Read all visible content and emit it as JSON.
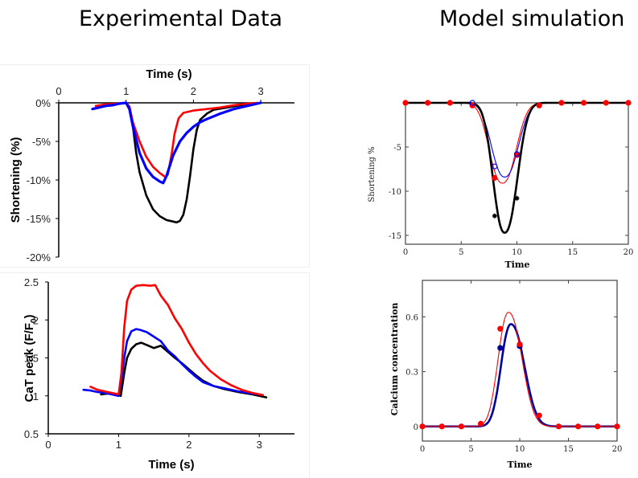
{
  "headings": {
    "left": "Experimental Data",
    "right": "Model simulation"
  },
  "chart_data": [
    {
      "id": "exp-shortening",
      "type": "line",
      "title": "",
      "xlabel": "Time (s)",
      "ylabel": "Shortening (%)",
      "xlim": [
        0,
        3.5
      ],
      "ylim": [
        -20,
        0
      ],
      "xticks": [
        "0",
        "1",
        "2",
        "3"
      ],
      "xtick_values": [
        0,
        1,
        2,
        3
      ],
      "yticks": [
        "0%",
        "-5%",
        "-10%",
        "-15%",
        "-20%"
      ],
      "ytick_values": [
        0,
        -5,
        -10,
        -15,
        -20
      ],
      "x_axis_position": "top",
      "grid": false,
      "legend": "none",
      "series": [
        {
          "name": "black",
          "color": "#000000",
          "x": [
            1.0,
            1.05,
            1.1,
            1.15,
            1.2,
            1.3,
            1.4,
            1.5,
            1.6,
            1.7,
            1.75,
            1.8,
            1.85,
            1.9,
            1.95,
            2.0,
            2.05,
            2.1,
            2.2,
            2.3,
            2.5,
            2.7,
            2.9,
            3.0
          ],
          "y": [
            0,
            -0.5,
            -3,
            -6.5,
            -9,
            -12,
            -13.8,
            -14.7,
            -15.2,
            -15.4,
            -15.5,
            -15.3,
            -14.5,
            -12.5,
            -9.5,
            -6,
            -3.5,
            -2.2,
            -1.4,
            -0.9,
            -0.6,
            -0.3,
            -0.1,
            0
          ]
        },
        {
          "name": "red",
          "color": "#ff0000",
          "x": [
            0.55,
            0.7,
            0.85,
            1.0,
            1.05,
            1.1,
            1.2,
            1.3,
            1.4,
            1.5,
            1.58,
            1.62,
            1.68,
            1.72,
            1.78,
            1.85,
            2.0,
            2.2,
            2.4,
            2.6,
            2.8,
            2.95
          ],
          "y": [
            -0.4,
            -0.2,
            -0.1,
            0,
            -0.5,
            -2.5,
            -5,
            -7,
            -8.3,
            -9.1,
            -9.6,
            -9.3,
            -6.5,
            -4,
            -2,
            -1.3,
            -1.0,
            -0.8,
            -0.6,
            -0.3,
            -0.1,
            0
          ]
        },
        {
          "name": "blue",
          "color": "#0000ff",
          "x": [
            0.5,
            0.6,
            0.7,
            0.8,
            0.9,
            1.0,
            1.05,
            1.1,
            1.2,
            1.3,
            1.4,
            1.5,
            1.55,
            1.6,
            1.7,
            1.8,
            1.9,
            2.0,
            2.1,
            2.2,
            2.4,
            2.6,
            2.8,
            3.0
          ],
          "y": [
            -0.8,
            -0.6,
            -0.4,
            -0.3,
            -0.1,
            0,
            -0.8,
            -3,
            -6.5,
            -8.5,
            -9.6,
            -10.2,
            -10.4,
            -9.5,
            -6.8,
            -5.0,
            -3.9,
            -3.1,
            -2.5,
            -2.1,
            -1.4,
            -0.8,
            -0.4,
            0
          ]
        }
      ]
    },
    {
      "id": "exp-calcium",
      "type": "line",
      "title": "",
      "xlabel": "Time (s)",
      "ylabel": "CaT peak (F/F0)",
      "ylabel_main": "CaT peak (F/F",
      "ylabel_sub": "0",
      "ylabel_end": ")",
      "xlim": [
        0,
        3.5
      ],
      "ylim": [
        0.5,
        2.5
      ],
      "xticks": [
        "0",
        "1",
        "2",
        "3"
      ],
      "xtick_values": [
        0,
        1,
        2,
        3
      ],
      "yticks": [
        "2.5",
        "2",
        "1.5",
        "1",
        "0.5"
      ],
      "ytick_values": [
        2.5,
        2,
        1.5,
        1,
        0.5
      ],
      "grid": false,
      "legend": "none",
      "series": [
        {
          "name": "black",
          "color": "#000000",
          "x": [
            0.75,
            0.85,
            0.95,
            1.03,
            1.08,
            1.12,
            1.18,
            1.25,
            1.32,
            1.4,
            1.5,
            1.6,
            1.7,
            1.8,
            1.9,
            2.0,
            2.1,
            2.2,
            2.35,
            2.5,
            2.7,
            2.9,
            3.1
          ],
          "y": [
            1.02,
            1.03,
            1.02,
            1.0,
            1.3,
            1.5,
            1.62,
            1.68,
            1.7,
            1.67,
            1.63,
            1.66,
            1.58,
            1.5,
            1.43,
            1.35,
            1.27,
            1.2,
            1.13,
            1.09,
            1.05,
            1.02,
            0.98
          ]
        },
        {
          "name": "red",
          "color": "#ff0000",
          "x": [
            0.6,
            0.7,
            0.8,
            0.9,
            1.0,
            1.04,
            1.08,
            1.12,
            1.18,
            1.25,
            1.35,
            1.45,
            1.52,
            1.6,
            1.7,
            1.8,
            1.9,
            2.0,
            2.1,
            2.2,
            2.3,
            2.45,
            2.6,
            2.75,
            2.9,
            3.05
          ],
          "y": [
            1.12,
            1.08,
            1.06,
            1.04,
            1.02,
            1.3,
            1.9,
            2.25,
            2.4,
            2.45,
            2.46,
            2.45,
            2.46,
            2.32,
            2.2,
            2.02,
            1.88,
            1.7,
            1.55,
            1.43,
            1.33,
            1.22,
            1.14,
            1.08,
            1.04,
            1.01
          ]
        },
        {
          "name": "blue",
          "color": "#0000ff",
          "x": [
            0.5,
            0.6,
            0.7,
            0.8,
            0.9,
            1.0,
            1.04,
            1.08,
            1.12,
            1.18,
            1.25,
            1.3,
            1.4,
            1.5,
            1.6,
            1.7,
            1.8,
            1.9,
            2.0,
            2.1,
            2.2,
            2.35,
            2.5,
            2.7,
            2.9,
            3.05
          ],
          "y": [
            1.08,
            1.07,
            1.05,
            1.04,
            1.02,
            1.0,
            1.2,
            1.5,
            1.72,
            1.85,
            1.88,
            1.87,
            1.84,
            1.78,
            1.72,
            1.6,
            1.52,
            1.42,
            1.33,
            1.25,
            1.18,
            1.13,
            1.1,
            1.06,
            1.03,
            1.01
          ]
        }
      ]
    },
    {
      "id": "model-shortening",
      "type": "line",
      "title": "",
      "xlabel": "Time",
      "ylabel": "Shortening %",
      "xlim": [
        0,
        20
      ],
      "ylim": [
        -16,
        0
      ],
      "xticks": [
        "0",
        "5",
        "10",
        "15",
        "20"
      ],
      "xtick_values": [
        0,
        5,
        10,
        15,
        20
      ],
      "yticks": [
        "-5",
        "-10",
        "-15"
      ],
      "ytick_values": [
        -5,
        -10,
        -15
      ],
      "grid": false,
      "legend": "none",
      "series": [
        {
          "name": "black",
          "color": "#000000",
          "width": "thick",
          "peak_x": 8.9,
          "peak_y": -14.7,
          "onset": 6.0,
          "end": 12.5,
          "markers": {
            "x": [
              8,
              10
            ],
            "y": [
              -12.8,
              -10.8
            ],
            "style": "star"
          }
        },
        {
          "name": "red",
          "color": "#ff0000",
          "width": "thin",
          "peak_x": 8.7,
          "peak_y": -9.1,
          "onset": 5.8,
          "end": 12.5,
          "markers": {
            "x": [
              0,
              2,
              4,
              6,
              8,
              10,
              12,
              14,
              16,
              18,
              20
            ],
            "y": [
              0,
              0,
              0,
              -0.3,
              -8.5,
              -5.9,
              -0.3,
              0,
              0,
              0,
              0
            ],
            "style": "filled-circle"
          }
        },
        {
          "name": "blue",
          "color": "#0000ff",
          "width": "thin",
          "peak_x": 8.9,
          "peak_y": -8.4,
          "onset": 6.1,
          "end": 12.5,
          "markers": {
            "x": [
              6,
              8,
              10
            ],
            "y": [
              0,
              -7.2,
              -5.8
            ],
            "style": "open-circle"
          }
        }
      ]
    },
    {
      "id": "model-calcium",
      "type": "line",
      "title": "",
      "xlabel": "Time",
      "ylabel": "Calcium concentration",
      "xlim": [
        0,
        20
      ],
      "ylim": [
        -0.08,
        0.8
      ],
      "xticks": [
        "0",
        "5",
        "10",
        "15",
        "20"
      ],
      "xtick_values": [
        0,
        5,
        10,
        15,
        20
      ],
      "yticks": [
        "0",
        "0.3",
        "0.6"
      ],
      "ytick_values": [
        0,
        0.3,
        0.6
      ],
      "grid": false,
      "legend": "none",
      "series": [
        {
          "name": "navy",
          "color": "#00009a",
          "width": "thick",
          "peak_x": 9.1,
          "peak_y": 0.56,
          "markers": {
            "x": [
              8,
              10
            ],
            "y": [
              0.43,
              0.44
            ],
            "style": "filled-circle"
          }
        },
        {
          "name": "red",
          "color": "#ff0000",
          "width": "thin",
          "peak_x": 8.85,
          "peak_y": 0.625,
          "markers": {
            "x": [
              0,
              2,
              4,
              6,
              8,
              10,
              12,
              14,
              16,
              18,
              20
            ],
            "y": [
              0,
              0,
              0,
              0.015,
              0.535,
              0.45,
              0.06,
              0,
              0,
              0,
              0
            ],
            "style": "filled-circle"
          }
        }
      ]
    }
  ]
}
